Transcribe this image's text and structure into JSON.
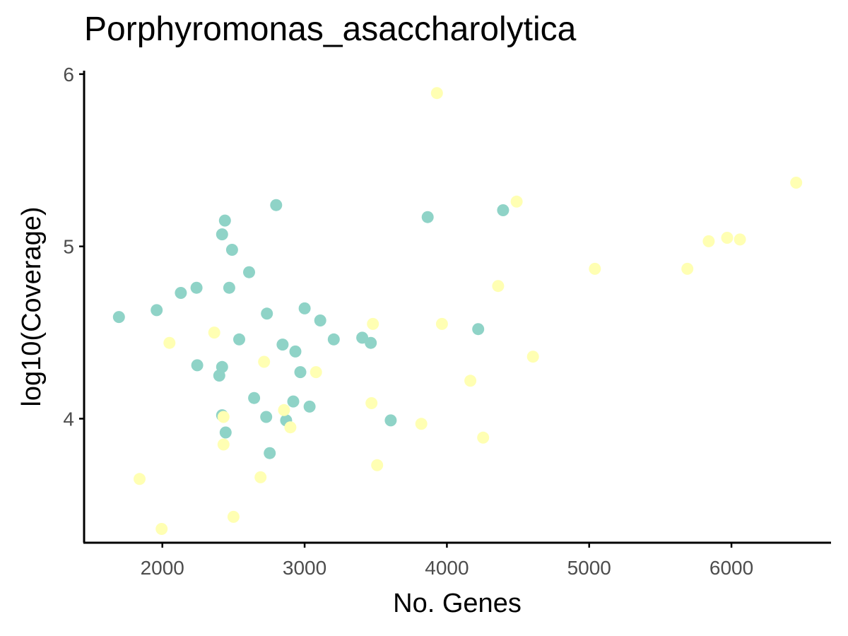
{
  "chart_data": {
    "type": "scatter",
    "title": "Porphyromonas_asaccharolytica",
    "xlabel": "No. Genes",
    "ylabel": "log10(Coverage)",
    "xlim": [
      1450,
      6700
    ],
    "ylim": [
      3.28,
      6.02
    ],
    "x_ticks": [
      2000,
      3000,
      4000,
      5000,
      6000
    ],
    "y_ticks": [
      4,
      5,
      6
    ],
    "grid": false,
    "legend": "none",
    "colors": {
      "teal": "#8fd3c7",
      "yellow": "#ffffb3"
    },
    "series": [
      {
        "color": "#8fd3c7",
        "points": [
          [
            1695,
            4.59
          ],
          [
            1960,
            4.63
          ],
          [
            2130,
            4.73
          ],
          [
            2240,
            4.76
          ],
          [
            2245,
            4.31
          ],
          [
            2400,
            4.25
          ],
          [
            2420,
            4.3
          ],
          [
            2420,
            5.07
          ],
          [
            2440,
            5.15
          ],
          [
            2470,
            4.76
          ],
          [
            2490,
            4.98
          ],
          [
            2540,
            4.46
          ],
          [
            2610,
            4.85
          ],
          [
            2645,
            4.12
          ],
          [
            2730,
            4.01
          ],
          [
            2735,
            4.61
          ],
          [
            2755,
            3.8
          ],
          [
            2800,
            5.24
          ],
          [
            2845,
            4.43
          ],
          [
            2870,
            3.99
          ],
          [
            2920,
            4.1
          ],
          [
            2935,
            4.39
          ],
          [
            2970,
            4.27
          ],
          [
            3000,
            4.64
          ],
          [
            3035,
            4.07
          ],
          [
            3110,
            4.57
          ],
          [
            3205,
            4.46
          ],
          [
            3405,
            4.47
          ],
          [
            3465,
            4.44
          ],
          [
            3605,
            3.99
          ],
          [
            3865,
            5.17
          ],
          [
            4220,
            4.52
          ],
          [
            4395,
            5.21
          ],
          [
            2420,
            4.02
          ],
          [
            2445,
            3.92
          ]
        ]
      },
      {
        "color": "#ffffb3",
        "points": [
          [
            1840,
            3.65
          ],
          [
            1995,
            3.36
          ],
          [
            2050,
            4.44
          ],
          [
            2365,
            4.5
          ],
          [
            2430,
            4.01
          ],
          [
            2430,
            3.85
          ],
          [
            2500,
            3.43
          ],
          [
            2690,
            3.66
          ],
          [
            2715,
            4.33
          ],
          [
            2855,
            4.05
          ],
          [
            2900,
            3.95
          ],
          [
            3080,
            4.27
          ],
          [
            3470,
            4.09
          ],
          [
            3480,
            4.55
          ],
          [
            3510,
            3.73
          ],
          [
            3820,
            3.97
          ],
          [
            3930,
            5.89
          ],
          [
            3965,
            4.55
          ],
          [
            4165,
            4.22
          ],
          [
            4255,
            3.89
          ],
          [
            4360,
            4.77
          ],
          [
            4490,
            5.26
          ],
          [
            4605,
            4.36
          ],
          [
            5040,
            4.87
          ],
          [
            5690,
            4.87
          ],
          [
            5840,
            5.03
          ],
          [
            5970,
            5.05
          ],
          [
            6060,
            5.04
          ],
          [
            6455,
            5.37
          ]
        ]
      }
    ]
  }
}
